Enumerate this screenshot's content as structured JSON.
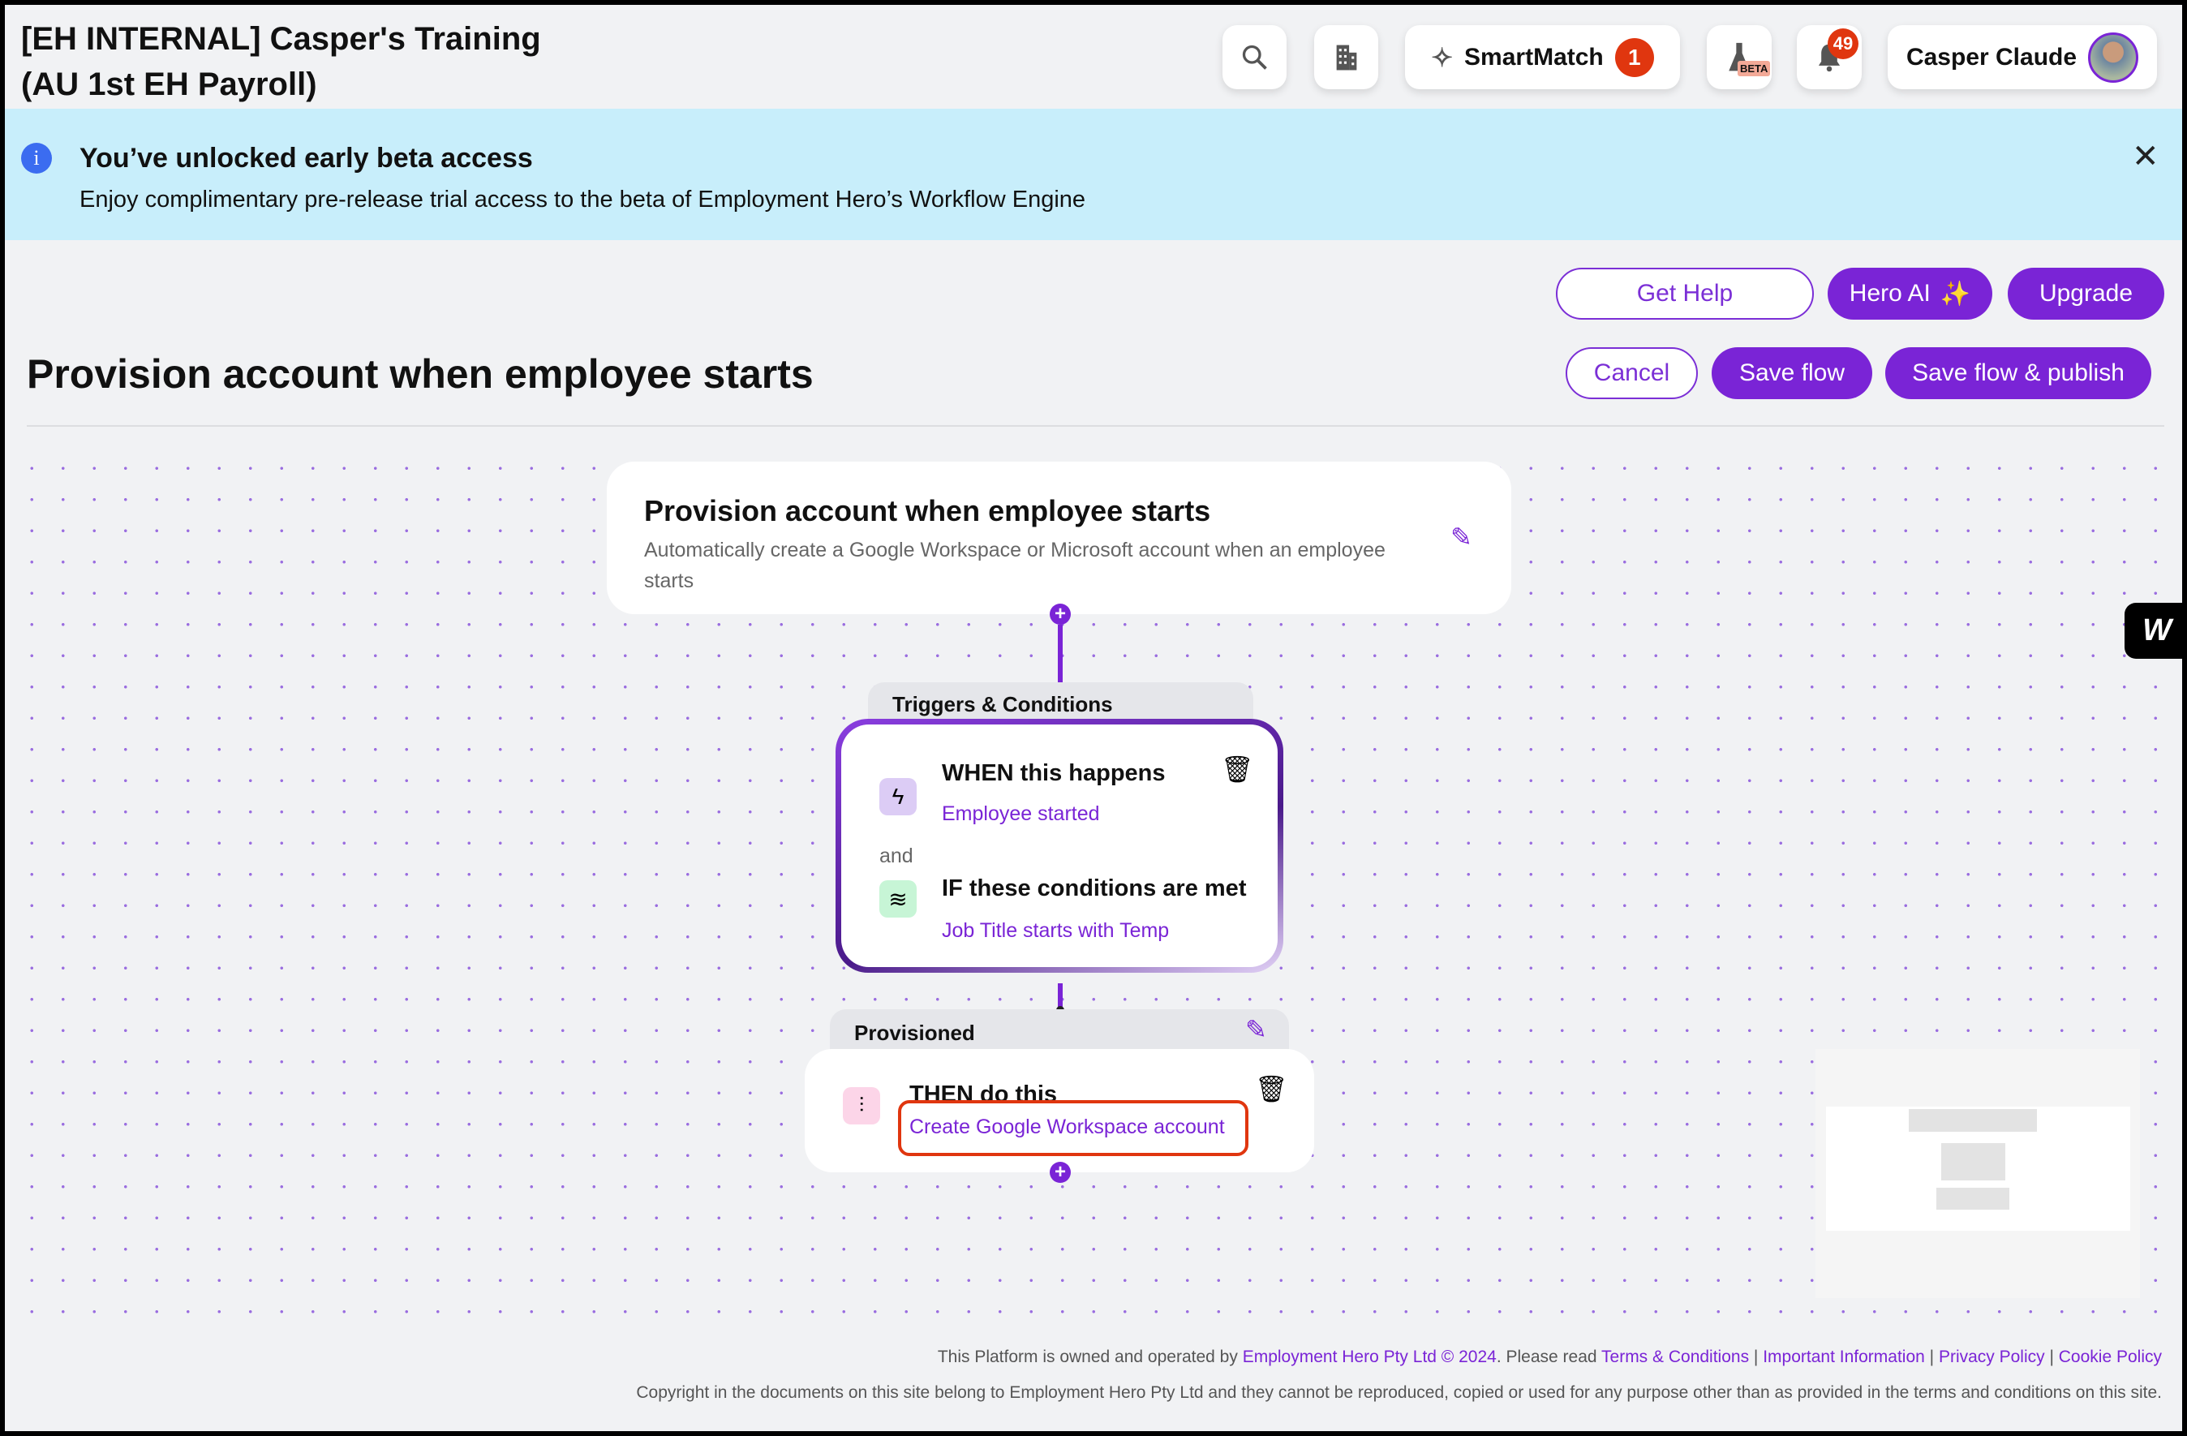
{
  "header": {
    "title_line1": "[EH INTERNAL] Casper's Training",
    "title_line2": "(AU 1st EH Payroll)",
    "search_icon": "search-icon",
    "org_icon": "buildings-icon",
    "smartmatch_label": "SmartMatch",
    "smartmatch_count": "1",
    "beta_label": "BETA",
    "notifications_count": "49",
    "user_name": "Casper Claude"
  },
  "banner": {
    "title": "You’ve unlocked early beta access",
    "text": "Enjoy complimentary pre-release trial access to the beta of Employment Hero’s Workflow Engine",
    "bg": "#c8eefb"
  },
  "actions": {
    "get_help": "Get Help",
    "hero_ai": "Hero AI",
    "upgrade": "Upgrade",
    "cancel": "Cancel",
    "save_flow": "Save flow",
    "save_publish": "Save flow & publish"
  },
  "page": {
    "title": "Provision account when employee starts"
  },
  "flow": {
    "summary": {
      "title": "Provision account when employee starts",
      "description": "Automatically create a Google Workspace or Microsoft account when an employee starts"
    },
    "triggers": {
      "tab": "Triggers & Conditions",
      "when_title": "WHEN this happens",
      "when_value": "Employee started",
      "and": "and",
      "if_title": "IF these conditions are met",
      "if_value": "Job Title starts with Temp"
    },
    "action": {
      "tab": "Provisioned",
      "then_title": "THEN do this",
      "then_value": "Create Google Workspace account"
    }
  },
  "footer": {
    "l1_a": "This Platform is owned and operated by ",
    "l1_link": "Employment Hero Pty Ltd © 2024",
    "l1_b": ". Please read ",
    "terms": "Terms & Conditions",
    "important": "Important Information",
    "privacy": "Privacy Policy",
    "cookie": "Cookie Policy",
    "sep": " | ",
    "copyright": "Copyright in the documents on this site belong to Employment Hero Pty Ltd and they cannot be reproduced, copied or used for any purpose other than as provided in the terms and conditions on this site."
  },
  "colors": {
    "accent": "#7a24d6",
    "highlight": "#e0360f"
  }
}
